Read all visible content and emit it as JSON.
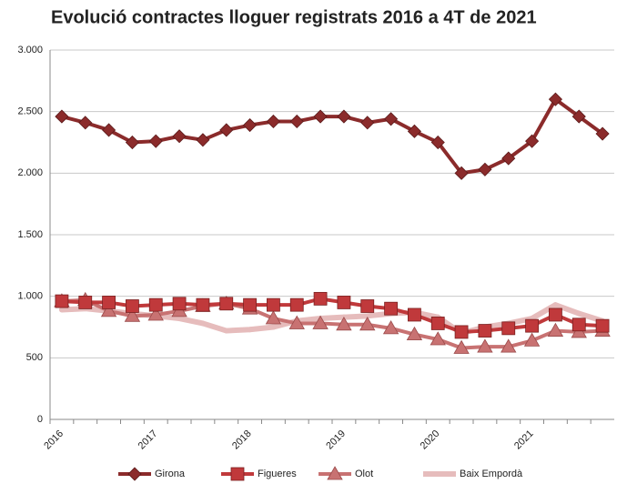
{
  "chart_data": {
    "type": "line",
    "title": "Evolució contractes lloguer registrats 2016 a 4T de 2021",
    "categories": [
      "2016",
      null,
      null,
      null,
      "2017",
      null,
      null,
      null,
      "2018",
      null,
      null,
      null,
      "2019",
      null,
      null,
      null,
      "2020",
      null,
      null,
      null,
      "2021",
      null,
      null,
      null
    ],
    "series": [
      {
        "name": "Girona",
        "color": "#8b2b2b",
        "marker": "diamond",
        "values": [
          2460,
          2410,
          2350,
          2250,
          2260,
          2300,
          2270,
          2350,
          2390,
          2420,
          2420,
          2460,
          2460,
          2410,
          2440,
          2340,
          2250,
          2000,
          2030,
          2120,
          2260,
          2600,
          2460,
          2320
        ]
      },
      {
        "name": "Figueres",
        "color": "#c0393b",
        "marker": "square",
        "values": [
          960,
          950,
          950,
          920,
          930,
          940,
          930,
          940,
          930,
          930,
          930,
          980,
          950,
          920,
          900,
          850,
          780,
          710,
          720,
          740,
          760,
          850,
          770,
          760
        ]
      },
      {
        "name": "Olot",
        "color": "#c87272",
        "marker": "triangle",
        "values": [
          960,
          970,
          880,
          840,
          850,
          880,
          920,
          940,
          900,
          820,
          780,
          780,
          770,
          770,
          740,
          690,
          650,
          580,
          590,
          590,
          640,
          720,
          710,
          720
        ]
      },
      {
        "name": "Baix Empordà",
        "color": "#e6bcbc",
        "marker": "none",
        "values": [
          890,
          900,
          880,
          860,
          840,
          820,
          780,
          720,
          730,
          750,
          800,
          820,
          830,
          840,
          860,
          870,
          830,
          700,
          750,
          780,
          820,
          930,
          860,
          800
        ]
      }
    ],
    "ylim": [
      0,
      3000
    ],
    "yticks": [
      0,
      500,
      {
        "value": 1000,
        "label": "1.000"
      },
      {
        "value": 1500,
        "label": "1.500"
      },
      {
        "value": 2000,
        "label": "2.000"
      },
      {
        "value": 2500,
        "label": "2.500"
      },
      {
        "value": 3000,
        "label": "3.000"
      }
    ],
    "grid": true,
    "legend": "bottom"
  }
}
